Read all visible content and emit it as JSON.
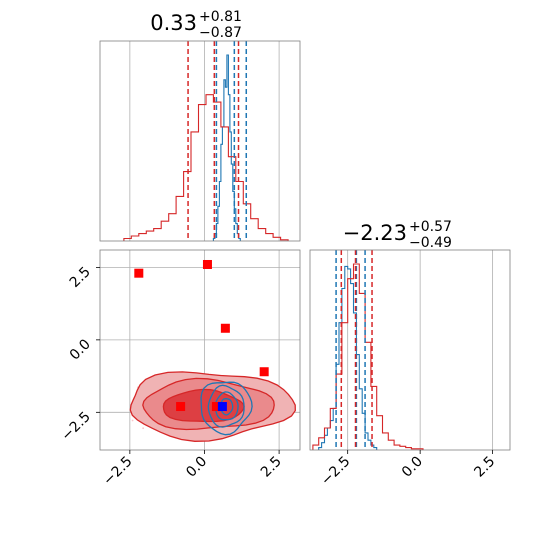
{
  "chart_data": {
    "type": "corner",
    "parameters": [
      {
        "title": {
          "value": "0.33",
          "plus": "+0.81",
          "minus": "−0.87"
        },
        "range": [
          -3.5,
          3.2
        ],
        "ticks": [
          {
            "value": -2.5,
            "label": "−2.5"
          },
          {
            "value": 0.0,
            "label": "0.0"
          },
          {
            "value": 2.5,
            "label": "2.5"
          }
        ]
      },
      {
        "title": {
          "value": "−2.23",
          "plus": "+0.57",
          "minus": "−0.49"
        },
        "range": [
          -3.8,
          3.1
        ],
        "ticks": [
          {
            "value": -2.5,
            "label": "−2.5"
          },
          {
            "value": 0.0,
            "label": "0.0"
          },
          {
            "value": 2.5,
            "label": "2.5"
          }
        ]
      }
    ],
    "series": [
      {
        "color": "#1f77b4",
        "quantiles_p0": [
          0.4,
          1.4,
          1.0
        ],
        "quantiles_p1": [
          -2.9,
          -2.2,
          -1.9
        ],
        "hist_p0": {
          "edges": [
            0.3,
            0.35,
            0.4,
            0.45,
            0.5,
            0.55,
            0.6,
            0.65,
            0.7,
            0.75,
            0.8,
            0.85,
            0.9,
            0.95,
            1.0,
            1.05,
            1.1,
            1.15,
            1.2
          ],
          "counts": [
            2,
            6,
            14,
            28,
            48,
            78,
            92,
            130,
            124,
            150,
            118,
            88,
            62,
            40,
            26,
            14,
            6,
            2
          ]
        },
        "hist_p1": {
          "edges": [
            -3.5,
            -3.4,
            -3.3,
            -3.2,
            -3.1,
            -3.0,
            -2.9,
            -2.8,
            -2.7,
            -2.6,
            -2.5,
            -2.4,
            -2.3,
            -2.2,
            -2.1,
            -2.0,
            -1.9,
            -1.8,
            -1.7,
            -1.6,
            -1.5
          ],
          "counts": [
            2,
            6,
            12,
            18,
            24,
            34,
            70,
            104,
            132,
            150,
            148,
            136,
            112,
            78,
            50,
            30,
            14,
            8,
            4,
            2
          ]
        }
      },
      {
        "color": "#d62728",
        "quantiles_p0": [
          -0.55,
          0.33,
          1.14
        ],
        "quantiles_p1": [
          -2.72,
          -2.23,
          -1.66
        ],
        "hist_p0": {
          "edges": [
            -2.7,
            -2.45,
            -2.2,
            -1.95,
            -1.7,
            -1.45,
            -1.2,
            -0.95,
            -0.7,
            -0.45,
            -0.2,
            0.05,
            0.3,
            0.55,
            0.8,
            1.05,
            1.3,
            1.55,
            1.8,
            2.05,
            2.3,
            2.55,
            2.8
          ],
          "counts": [
            2,
            4,
            6,
            8,
            10,
            16,
            22,
            36,
            56,
            88,
            110,
            118,
            112,
            92,
            68,
            48,
            30,
            18,
            10,
            6,
            3,
            1
          ]
        },
        "hist_p1": {
          "edges": [
            -3.7,
            -3.5,
            -3.3,
            -3.1,
            -2.9,
            -2.7,
            -2.5,
            -2.3,
            -2.1,
            -1.9,
            -1.7,
            -1.5,
            -1.3,
            -1.1,
            -0.9,
            -0.7,
            -0.5,
            -0.3,
            -0.1,
            0.1
          ],
          "counts": [
            4,
            10,
            18,
            34,
            62,
            104,
            140,
            152,
            128,
            88,
            52,
            28,
            14,
            8,
            4,
            3,
            2,
            1,
            1
          ]
        }
      }
    ],
    "truth_points": [
      {
        "x": -2.2,
        "y": 2.3,
        "color": "#ff0000"
      },
      {
        "x": 0.1,
        "y": 2.6,
        "color": "#ff0000"
      },
      {
        "x": 0.7,
        "y": 0.4,
        "color": "#ff0000"
      },
      {
        "x": 2.0,
        "y": -1.1,
        "color": "#ff0000"
      },
      {
        "x": -0.8,
        "y": -2.3,
        "color": "#ff0000"
      },
      {
        "x": 0.4,
        "y": -2.3,
        "color": "#ff0000"
      },
      {
        "x": 0.6,
        "y": -2.3,
        "color": "#0000ff"
      }
    ],
    "grid": true
  }
}
